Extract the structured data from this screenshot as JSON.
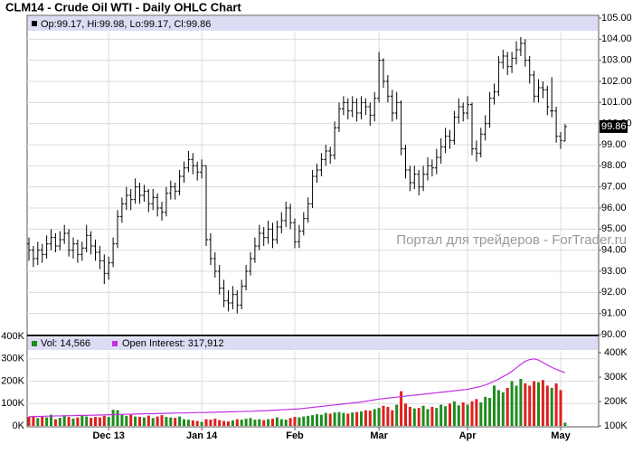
{
  "chart_data": {
    "type": "ohlc",
    "title": "CLM14 - Crude Oil WTI - Daily OHLC Chart",
    "legend_text": "Op:99.17, Hi:99.98, Lo:99.17, Cl:99.86",
    "last_label": "99.86",
    "watermark": "Портал для трейдеров - ForTrader.ru",
    "bar_color": "#000000",
    "grid": true,
    "ylim": [
      90,
      105
    ],
    "yticks": [
      {
        "value": 90,
        "label": "90.00"
      },
      {
        "value": 91,
        "label": "91.00"
      },
      {
        "value": 92,
        "label": "92.00"
      },
      {
        "value": 93,
        "label": "93.00"
      },
      {
        "value": 94,
        "label": "94.00"
      },
      {
        "value": 95,
        "label": "95.00"
      },
      {
        "value": 96,
        "label": "96.00"
      },
      {
        "value": 97,
        "label": "97.00"
      },
      {
        "value": 98,
        "label": "98.00"
      },
      {
        "value": 99,
        "label": "99.00"
      },
      {
        "value": 100,
        "label": "100.00"
      },
      {
        "value": 101,
        "label": "101.00"
      },
      {
        "value": 102,
        "label": "102.00"
      },
      {
        "value": 103,
        "label": "103.00"
      },
      {
        "value": 104,
        "label": "104.00"
      },
      {
        "value": 105,
        "label": "105.00"
      }
    ],
    "xticks": [
      {
        "value": 18,
        "label": "Dec 13"
      },
      {
        "value": 39,
        "label": "Jan 14"
      },
      {
        "value": 60,
        "label": "Feb"
      },
      {
        "value": 79,
        "label": "Mar"
      },
      {
        "value": 99,
        "label": "Apr"
      },
      {
        "value": 120,
        "label": "May"
      }
    ],
    "ohlc": [
      [
        94.3,
        94.6,
        93.5,
        94.0
      ],
      [
        94.0,
        94.2,
        93.2,
        93.6
      ],
      [
        93.6,
        94.4,
        93.3,
        94.0
      ],
      [
        94.0,
        94.3,
        93.4,
        93.8
      ],
      [
        93.8,
        94.7,
        93.6,
        94.3
      ],
      [
        94.3,
        95.0,
        94.0,
        94.6
      ],
      [
        94.6,
        94.8,
        93.9,
        94.2
      ],
      [
        94.2,
        94.9,
        94.0,
        94.5
      ],
      [
        94.5,
        95.2,
        94.3,
        94.8
      ],
      [
        94.8,
        95.0,
        93.7,
        94.0
      ],
      [
        94.0,
        94.6,
        93.6,
        94.3
      ],
      [
        94.3,
        94.5,
        93.4,
        93.8
      ],
      [
        93.8,
        94.4,
        93.5,
        94.1
      ],
      [
        94.1,
        95.2,
        93.9,
        94.7
      ],
      [
        94.7,
        94.9,
        93.8,
        94.2
      ],
      [
        94.2,
        94.5,
        93.5,
        93.9
      ],
      [
        93.9,
        94.2,
        93.1,
        93.5
      ],
      [
        93.5,
        93.8,
        92.4,
        92.9
      ],
      [
        92.9,
        93.7,
        92.6,
        93.4
      ],
      [
        93.4,
        94.6,
        93.2,
        94.3
      ],
      [
        94.3,
        95.9,
        94.1,
        95.6
      ],
      [
        95.6,
        96.5,
        95.3,
        96.2
      ],
      [
        96.2,
        97.0,
        95.9,
        96.6
      ],
      [
        96.6,
        96.9,
        95.9,
        96.4
      ],
      [
        96.4,
        97.4,
        96.2,
        97.0
      ],
      [
        97.0,
        97.2,
        96.2,
        96.6
      ],
      [
        96.6,
        97.1,
        96.3,
        96.8
      ],
      [
        96.8,
        96.9,
        95.8,
        96.2
      ],
      [
        96.2,
        96.9,
        95.9,
        96.5
      ],
      [
        96.5,
        96.7,
        95.6,
        96.0
      ],
      [
        96.0,
        96.3,
        95.4,
        95.8
      ],
      [
        95.8,
        97.0,
        95.6,
        96.7
      ],
      [
        96.7,
        97.3,
        96.4,
        97.0
      ],
      [
        97.0,
        97.2,
        96.4,
        96.8
      ],
      [
        96.8,
        97.8,
        96.6,
        97.5
      ],
      [
        97.5,
        98.2,
        97.2,
        97.9
      ],
      [
        97.9,
        98.7,
        97.7,
        98.3
      ],
      [
        98.3,
        98.6,
        97.6,
        98.0
      ],
      [
        98.0,
        98.2,
        97.3,
        97.7
      ],
      [
        97.7,
        98.3,
        97.4,
        98.0
      ],
      [
        98.0,
        98.0,
        94.2,
        94.5
      ],
      [
        94.5,
        94.8,
        93.3,
        93.6
      ],
      [
        93.6,
        93.9,
        92.7,
        93.0
      ],
      [
        93.0,
        93.3,
        91.9,
        92.2
      ],
      [
        92.2,
        92.6,
        91.3,
        91.6
      ],
      [
        91.6,
        92.1,
        91.1,
        91.5
      ],
      [
        91.5,
        92.3,
        91.2,
        91.9
      ],
      [
        91.9,
        92.1,
        91.0,
        91.4
      ],
      [
        91.4,
        92.6,
        91.2,
        92.3
      ],
      [
        92.3,
        93.3,
        92.1,
        93.0
      ],
      [
        93.0,
        93.9,
        92.8,
        93.6
      ],
      [
        93.6,
        94.6,
        93.4,
        94.2
      ],
      [
        94.2,
        95.2,
        94.0,
        94.8
      ],
      [
        94.8,
        95.1,
        94.2,
        94.6
      ],
      [
        94.6,
        95.4,
        94.3,
        95.0
      ],
      [
        95.0,
        95.3,
        94.1,
        94.5
      ],
      [
        94.5,
        95.4,
        94.3,
        95.1
      ],
      [
        95.1,
        95.8,
        94.8,
        95.4
      ],
      [
        95.4,
        96.3,
        95.1,
        96.0
      ],
      [
        96.0,
        96.2,
        95.0,
        95.3
      ],
      [
        95.3,
        95.5,
        94.1,
        94.4
      ],
      [
        94.4,
        95.2,
        94.1,
        94.9
      ],
      [
        94.9,
        95.8,
        94.7,
        95.5
      ],
      [
        95.5,
        96.5,
        95.3,
        96.2
      ],
      [
        96.2,
        97.8,
        96.0,
        97.5
      ],
      [
        97.5,
        98.1,
        97.2,
        97.8
      ],
      [
        97.8,
        98.6,
        97.5,
        98.3
      ],
      [
        98.3,
        99.0,
        98.0,
        98.7
      ],
      [
        98.7,
        98.9,
        98.1,
        98.5
      ],
      [
        98.5,
        100.1,
        98.3,
        99.8
      ],
      [
        99.8,
        101.0,
        99.6,
        100.7
      ],
      [
        100.7,
        101.3,
        100.4,
        101.0
      ],
      [
        101.0,
        101.2,
        100.2,
        100.6
      ],
      [
        100.6,
        101.3,
        100.3,
        101.0
      ],
      [
        101.0,
        101.2,
        100.1,
        100.5
      ],
      [
        100.5,
        101.3,
        100.2,
        101.0
      ],
      [
        101.0,
        101.2,
        100.4,
        100.8
      ],
      [
        100.8,
        101.0,
        99.9,
        100.4
      ],
      [
        100.4,
        101.5,
        100.1,
        101.2
      ],
      [
        101.2,
        103.4,
        101.0,
        103.0
      ],
      [
        103.0,
        103.1,
        101.7,
        102.0
      ],
      [
        102.0,
        102.3,
        101.0,
        101.3
      ],
      [
        101.3,
        101.6,
        100.1,
        100.5
      ],
      [
        100.5,
        101.5,
        100.2,
        101.0
      ],
      [
        101.0,
        101.1,
        98.5,
        98.8
      ],
      [
        98.8,
        99.0,
        97.4,
        97.8
      ],
      [
        97.8,
        98.0,
        96.8,
        97.2
      ],
      [
        97.2,
        98.0,
        96.9,
        97.6
      ],
      [
        97.6,
        97.8,
        96.6,
        97.0
      ],
      [
        97.0,
        98.0,
        96.8,
        97.6
      ],
      [
        97.6,
        98.4,
        97.3,
        98.0
      ],
      [
        98.0,
        98.3,
        97.5,
        97.9
      ],
      [
        97.9,
        98.8,
        97.6,
        98.4
      ],
      [
        98.4,
        99.3,
        98.1,
        98.9
      ],
      [
        98.9,
        99.8,
        98.6,
        99.4
      ],
      [
        99.4,
        99.7,
        98.8,
        99.2
      ],
      [
        99.2,
        100.6,
        99.0,
        100.3
      ],
      [
        100.3,
        101.2,
        100.0,
        100.8
      ],
      [
        100.8,
        101.0,
        100.1,
        100.5
      ],
      [
        100.5,
        101.3,
        100.2,
        100.9
      ],
      [
        100.9,
        101.0,
        98.5,
        98.8
      ],
      [
        98.8,
        99.2,
        98.2,
        98.6
      ],
      [
        98.6,
        99.8,
        98.4,
        99.5
      ],
      [
        99.5,
        100.4,
        99.2,
        100.0
      ],
      [
        100.0,
        101.5,
        99.8,
        101.2
      ],
      [
        101.2,
        101.9,
        100.9,
        101.5
      ],
      [
        101.5,
        103.2,
        101.3,
        102.9
      ],
      [
        102.9,
        103.5,
        102.6,
        103.2
      ],
      [
        103.2,
        103.4,
        102.3,
        102.7
      ],
      [
        102.7,
        103.4,
        102.4,
        103.1
      ],
      [
        103.1,
        103.9,
        102.8,
        103.5
      ],
      [
        103.5,
        104.1,
        103.2,
        103.8
      ],
      [
        103.8,
        104.0,
        102.7,
        103.0
      ],
      [
        103.0,
        103.2,
        101.9,
        102.3
      ],
      [
        102.3,
        102.5,
        101.0,
        101.3
      ],
      [
        101.3,
        102.1,
        101.0,
        101.7
      ],
      [
        101.7,
        102.0,
        101.2,
        101.6
      ],
      [
        101.6,
        101.8,
        100.4,
        100.8
      ],
      [
        100.6,
        102.2,
        100.3,
        100.6
      ],
      [
        100.6,
        100.8,
        99.1,
        99.4
      ],
      [
        99.4,
        99.6,
        98.8,
        99.2
      ],
      [
        99.17,
        99.98,
        99.17,
        99.86
      ]
    ],
    "volume": {
      "legend": "Vol: 14,566",
      "up_color": "#1e8c1e",
      "down_color": "#e01e1e",
      "ylim": [
        0,
        400000
      ],
      "yticks": [
        {
          "value": 0,
          "label": "0K"
        },
        {
          "value": 100000,
          "label": "100K"
        },
        {
          "value": 200000,
          "label": "200K"
        },
        {
          "value": 300000,
          "label": "300K"
        },
        {
          "value": 400000,
          "label": "400K"
        }
      ],
      "values": [
        40000,
        45000,
        35000,
        42000,
        38000,
        50000,
        30000,
        36000,
        48000,
        40000,
        33000,
        38000,
        45000,
        42000,
        36000,
        40000,
        38000,
        45000,
        40000,
        72000,
        70000,
        52000,
        45000,
        50000,
        42000,
        40000,
        38000,
        46000,
        35000,
        42000,
        48000,
        40000,
        38000,
        36000,
        42000,
        30000,
        28000,
        25000,
        22000,
        18000,
        30000,
        28000,
        32000,
        26000,
        22000,
        20000,
        25000,
        30000,
        28000,
        32000,
        35000,
        28000,
        30000,
        26000,
        30000,
        32000,
        38000,
        30000,
        28000,
        35000,
        40000,
        38000,
        42000,
        45000,
        48000,
        52000,
        50000,
        58000,
        55000,
        60000,
        62000,
        58000,
        55000,
        60000,
        62000,
        65000,
        70000,
        68000,
        75000,
        80000,
        90000,
        85000,
        70000,
        95000,
        155000,
        100000,
        85000,
        78000,
        80000,
        90000,
        75000,
        85000,
        80000,
        95000,
        88000,
        100000,
        110000,
        92000,
        105000,
        95000,
        110000,
        120000,
        105000,
        130000,
        125000,
        180000,
        160000,
        150000,
        170000,
        200000,
        180000,
        210000,
        190000,
        180000,
        200000,
        195000,
        205000,
        180000,
        170000,
        190000,
        160000,
        14566
      ]
    },
    "open_interest": {
      "legend": "Open Interest: 317,912",
      "color": "#c030e0",
      "y2lim": [
        100000,
        467000
      ],
      "y2ticks": [
        {
          "value": 100000,
          "label": "100K"
        },
        {
          "value": 200000,
          "label": "200K"
        },
        {
          "value": 300000,
          "label": "300K"
        },
        {
          "value": 400000,
          "label": "400K"
        }
      ],
      "values": [
        138000,
        138000,
        139000,
        139000,
        140000,
        140000,
        141000,
        141000,
        141000,
        142000,
        142000,
        143000,
        143000,
        143000,
        144000,
        144000,
        145000,
        145000,
        146000,
        146000,
        147000,
        147000,
        148000,
        148000,
        149000,
        149000,
        150000,
        150000,
        150000,
        151000,
        151000,
        152000,
        152000,
        153000,
        153000,
        153000,
        154000,
        154000,
        155000,
        155000,
        155000,
        156000,
        156000,
        157000,
        157000,
        158000,
        158000,
        159000,
        159000,
        160000,
        160000,
        161000,
        162000,
        162000,
        163000,
        164000,
        165000,
        166000,
        167000,
        168000,
        169000,
        170000,
        172000,
        174000,
        176000,
        178000,
        180000,
        182000,
        184000,
        186000,
        188000,
        190000,
        192000,
        194000,
        196000,
        198000,
        201000,
        204000,
        207000,
        210000,
        212000,
        214000,
        216000,
        218000,
        220000,
        222000,
        224000,
        226000,
        228000,
        230000,
        232000,
        234000,
        236000,
        238000,
        240000,
        242000,
        244000,
        246000,
        248000,
        250000,
        254000,
        258000,
        262000,
        268000,
        275000,
        283000,
        292000,
        302000,
        312000,
        324000,
        338000,
        352000,
        365000,
        372000,
        375000,
        370000,
        360000,
        350000,
        340000,
        332000,
        325000,
        317912
      ]
    }
  }
}
